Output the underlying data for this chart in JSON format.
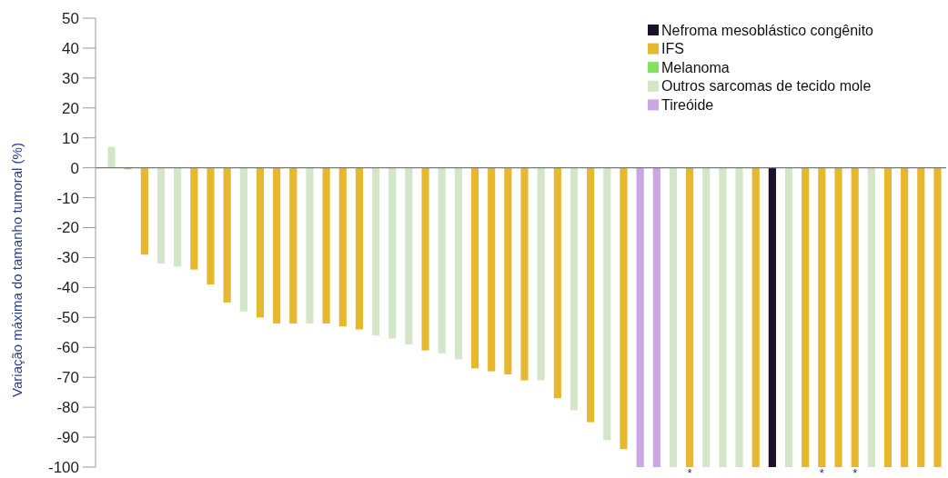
{
  "chart_data": {
    "type": "bar",
    "ylabel": "Variação máxima do tamanho tumoral (%)",
    "categories": [
      null,
      null,
      null,
      null,
      null,
      null,
      null,
      null,
      null,
      null,
      null,
      null,
      null,
      null,
      null,
      null,
      null,
      null,
      null,
      null,
      null,
      null,
      null,
      null,
      null,
      null,
      null,
      null,
      null,
      null,
      null,
      null,
      null,
      null,
      null,
      null,
      null,
      null,
      null,
      null,
      null,
      null,
      null,
      null,
      null,
      null,
      null,
      null,
      null,
      null,
      null
    ],
    "series": [
      {
        "name": "Nefroma mesoblástico congênito",
        "color": "#1e1028",
        "values": [
          null,
          null,
          null,
          null,
          null,
          null,
          null,
          null,
          null,
          null,
          null,
          null,
          null,
          null,
          null,
          null,
          null,
          null,
          null,
          null,
          null,
          null,
          null,
          null,
          null,
          null,
          null,
          null,
          null,
          null,
          null,
          null,
          null,
          null,
          null,
          null,
          null,
          null,
          null,
          null,
          -100,
          null,
          null,
          null,
          null,
          null,
          null,
          null,
          null,
          null,
          null
        ]
      },
      {
        "name": "IFS",
        "color": "#e6b830",
        "values": [
          null,
          null,
          -29,
          null,
          null,
          -34,
          -39,
          -45,
          null,
          -50,
          -52,
          -52,
          null,
          -52,
          -53,
          -54,
          null,
          null,
          null,
          -61,
          null,
          null,
          -67,
          -68,
          -69,
          -71,
          null,
          -77,
          null,
          -85,
          null,
          -94,
          null,
          null,
          null,
          -100,
          null,
          null,
          null,
          -100,
          null,
          null,
          -100,
          -100,
          -100,
          -100,
          null,
          -100,
          -100,
          -100,
          -100
        ],
        "value_labels": [
          null,
          null,
          null,
          null,
          null,
          null,
          null,
          null,
          null,
          null,
          null,
          null,
          null,
          null,
          null,
          null,
          null,
          null,
          null,
          null,
          null,
          null,
          null,
          null,
          null,
          null,
          null,
          null,
          null,
          null,
          null,
          null,
          null,
          null,
          null,
          "*",
          null,
          null,
          null,
          null,
          null,
          null,
          null,
          "*",
          null,
          "*",
          null,
          null,
          null,
          null,
          null
        ]
      },
      {
        "name": "Melanoma",
        "color": "#86e060",
        "values": [
          null,
          -0.5,
          null,
          null,
          null,
          null,
          null,
          null,
          null,
          null,
          null,
          null,
          null,
          null,
          null,
          null,
          null,
          null,
          null,
          null,
          null,
          null,
          null,
          null,
          null,
          null,
          null,
          null,
          null,
          null,
          null,
          null,
          null,
          null,
          null,
          null,
          null,
          null,
          null,
          null,
          null,
          null,
          null,
          null,
          null,
          null,
          null,
          null,
          null,
          null,
          null
        ]
      },
      {
        "name": "Outros sarcomas de tecido mole",
        "color": "#d3e6c8",
        "values": [
          7,
          null,
          null,
          -32,
          -33,
          null,
          null,
          null,
          -48,
          null,
          null,
          null,
          -52,
          null,
          null,
          null,
          -56,
          -57,
          -59,
          null,
          -62,
          -64,
          null,
          null,
          null,
          null,
          -71,
          null,
          -81,
          null,
          -91,
          null,
          null,
          null,
          -100,
          null,
          -100,
          -100,
          -100,
          null,
          null,
          -100,
          null,
          null,
          null,
          null,
          -100,
          null,
          null,
          null,
          null
        ]
      },
      {
        "name": "Tireóide",
        "color": "#c9a6e4",
        "values": [
          null,
          null,
          null,
          null,
          null,
          null,
          null,
          null,
          null,
          null,
          null,
          null,
          null,
          null,
          null,
          null,
          null,
          null,
          null,
          null,
          null,
          null,
          null,
          null,
          null,
          null,
          null,
          null,
          null,
          null,
          null,
          null,
          -100,
          -100,
          null,
          null,
          null,
          null,
          null,
          null,
          null,
          null,
          null,
          null,
          null,
          null,
          null,
          null,
          null,
          null,
          null
        ]
      }
    ],
    "ylim": [
      -100,
      50
    ],
    "yticks": [
      -100,
      -90,
      -80,
      -70,
      -60,
      -50,
      -40,
      -30,
      -20,
      -10,
      0,
      10,
      20,
      30,
      40,
      50
    ],
    "legend": "top right"
  }
}
